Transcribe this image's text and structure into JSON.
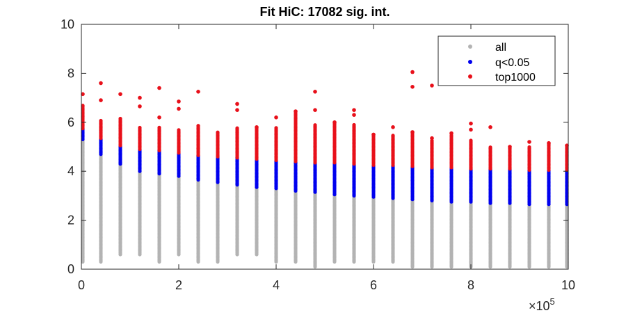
{
  "chart_data": {
    "type": "scatter",
    "title": "Fit HiC: 17082 sig. int.",
    "xlabel": "",
    "ylabel": "",
    "x_scale_label": "×10",
    "x_scale_exponent": "5",
    "xlim": [
      0,
      1000000
    ],
    "ylim": [
      0,
      10
    ],
    "x_ticks": [
      0,
      200000,
      400000,
      600000,
      800000,
      1000000
    ],
    "x_tick_labels": [
      "0",
      "2",
      "4",
      "6",
      "8",
      "10"
    ],
    "y_ticks": [
      0,
      2,
      4,
      6,
      8,
      10
    ],
    "y_tick_labels": [
      "0",
      "2",
      "4",
      "6",
      "8",
      "10"
    ],
    "grid": false,
    "legend_position": "top-right",
    "x_bins": [
      0,
      40000,
      80000,
      120000,
      160000,
      200000,
      240000,
      280000,
      320000,
      360000,
      400000,
      440000,
      480000,
      520000,
      560000,
      600000,
      640000,
      680000,
      720000,
      760000,
      800000,
      840000,
      880000,
      920000,
      960000,
      1000000
    ],
    "series": [
      {
        "name": "all",
        "color": "#b3b3b3",
        "y_min": [
          0.3,
          0.3,
          0.6,
          0.6,
          0.3,
          0.6,
          0.3,
          0.3,
          0.6,
          0.6,
          0.3,
          0.3,
          0.1,
          0.3,
          0.3,
          0.3,
          0.3,
          0.1,
          0.1,
          0.1,
          0.1,
          0.1,
          0.1,
          0.1,
          0.1,
          0.1
        ],
        "y_max": [
          5.3,
          4.7,
          4.3,
          4.0,
          3.9,
          3.8,
          3.65,
          3.55,
          3.45,
          3.35,
          3.3,
          3.2,
          3.15,
          3.05,
          3.0,
          2.95,
          2.9,
          2.85,
          2.8,
          2.75,
          2.75,
          2.7,
          2.7,
          2.65,
          2.65,
          2.65
        ]
      },
      {
        "name": "q<0.05",
        "color": "#0000ee",
        "y_min": [
          5.3,
          4.7,
          4.3,
          4.0,
          3.9,
          3.8,
          3.65,
          3.55,
          3.45,
          3.35,
          3.3,
          3.2,
          3.15,
          3.05,
          3.0,
          2.95,
          2.9,
          2.85,
          2.8,
          2.75,
          2.75,
          2.7,
          2.7,
          2.65,
          2.65,
          2.65
        ],
        "y_max": [
          5.75,
          5.35,
          5.05,
          4.9,
          4.85,
          4.75,
          4.65,
          4.6,
          4.55,
          4.5,
          4.45,
          4.4,
          4.35,
          4.35,
          4.3,
          4.25,
          4.25,
          4.2,
          4.15,
          4.15,
          4.1,
          4.1,
          4.1,
          4.05,
          4.05,
          4.05
        ]
      },
      {
        "name": "top1000",
        "color": "#e8101a",
        "y_min": [
          5.75,
          5.35,
          5.05,
          4.9,
          4.85,
          4.75,
          4.65,
          4.6,
          4.55,
          4.5,
          4.45,
          4.4,
          4.35,
          4.35,
          4.3,
          4.25,
          4.25,
          4.2,
          4.15,
          4.15,
          4.1,
          4.1,
          4.1,
          4.05,
          4.05,
          4.05
        ],
        "y_max": [
          6.7,
          6.1,
          6.2,
          5.8,
          5.8,
          5.7,
          5.9,
          5.6,
          5.8,
          5.8,
          5.8,
          6.4,
          5.9,
          6.0,
          5.9,
          5.5,
          5.5,
          5.6,
          5.3,
          5.5,
          5.3,
          5.0,
          5.0,
          5.0,
          5.1,
          5.0
        ],
        "outliers": [
          [
            0,
            7.15
          ],
          [
            40000,
            7.6
          ],
          [
            40000,
            6.9
          ],
          [
            80000,
            7.15
          ],
          [
            120000,
            7.0
          ],
          [
            120000,
            6.65
          ],
          [
            160000,
            7.4
          ],
          [
            160000,
            6.2
          ],
          [
            200000,
            6.85
          ],
          [
            200000,
            6.55
          ],
          [
            240000,
            7.25
          ],
          [
            320000,
            6.75
          ],
          [
            320000,
            6.5
          ],
          [
            360000,
            5.8
          ],
          [
            400000,
            6.2
          ],
          [
            440000,
            6.45
          ],
          [
            480000,
            7.25
          ],
          [
            480000,
            6.5
          ],
          [
            520000,
            6.0
          ],
          [
            560000,
            6.5
          ],
          [
            560000,
            6.3
          ],
          [
            600000,
            5.5
          ],
          [
            640000,
            5.8
          ],
          [
            680000,
            8.05
          ],
          [
            680000,
            7.45
          ],
          [
            680000,
            5.6
          ],
          [
            720000,
            7.5
          ],
          [
            720000,
            5.35
          ],
          [
            760000,
            5.55
          ],
          [
            800000,
            5.95
          ],
          [
            800000,
            5.7
          ],
          [
            840000,
            5.8
          ],
          [
            880000,
            5.0
          ],
          [
            920000,
            5.2
          ],
          [
            960000,
            5.15
          ],
          [
            1000000,
            5.05
          ]
        ]
      }
    ]
  }
}
